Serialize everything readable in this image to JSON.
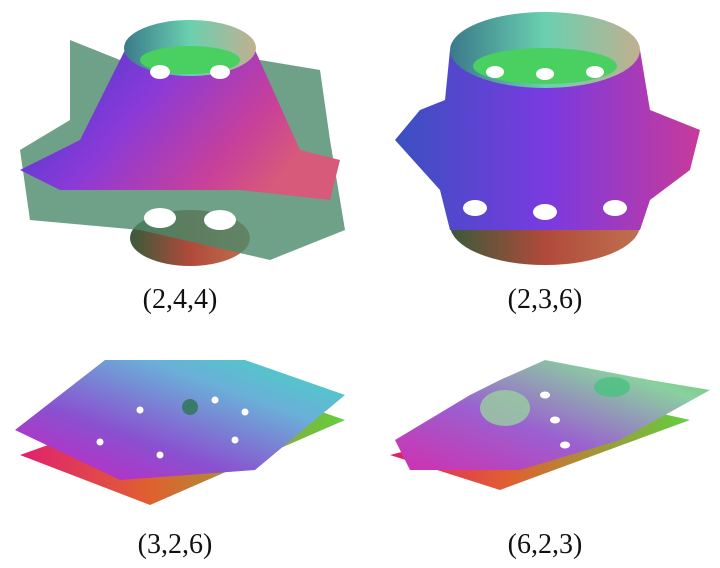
{
  "figure": {
    "panels": [
      {
        "label": "(2,4,4)"
      },
      {
        "label": "(2,3,6)"
      },
      {
        "label": "(3,2,6)"
      },
      {
        "label": "(6,2,3)"
      }
    ]
  }
}
